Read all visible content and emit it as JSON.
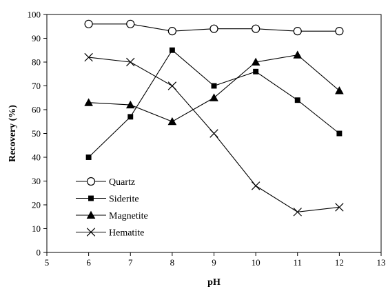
{
  "chart_data": {
    "type": "line",
    "xlabel": "pH",
    "ylabel": "Recovery (%)",
    "xlim": [
      5,
      13
    ],
    "ylim": [
      0,
      100
    ],
    "xticks": [
      5,
      6,
      7,
      8,
      9,
      10,
      11,
      12,
      13
    ],
    "yticks": [
      0,
      10,
      20,
      30,
      40,
      50,
      60,
      70,
      80,
      90,
      100
    ],
    "grid": false,
    "legend_position": "bottom-left",
    "series": [
      {
        "name": "Quartz",
        "marker": "open-circle",
        "color": "#000000",
        "x": [
          6,
          7,
          8,
          9,
          10,
          11,
          12
        ],
        "y": [
          96,
          96,
          93,
          94,
          94,
          93,
          93
        ]
      },
      {
        "name": "Siderite",
        "marker": "filled-square",
        "color": "#000000",
        "x": [
          6,
          7,
          8,
          9,
          10,
          11,
          12
        ],
        "y": [
          40,
          57,
          85,
          70,
          76,
          64,
          50
        ]
      },
      {
        "name": "Magnetite",
        "marker": "filled-triangle",
        "color": "#000000",
        "x": [
          6,
          7,
          8,
          9,
          10,
          11,
          12
        ],
        "y": [
          63,
          62,
          55,
          65,
          80,
          83,
          68
        ]
      },
      {
        "name": "Hematite",
        "marker": "cross",
        "color": "#000000",
        "x": [
          6,
          7,
          8,
          9,
          10,
          11,
          12
        ],
        "y": [
          82,
          80,
          70,
          50,
          28,
          17,
          19
        ]
      }
    ]
  }
}
